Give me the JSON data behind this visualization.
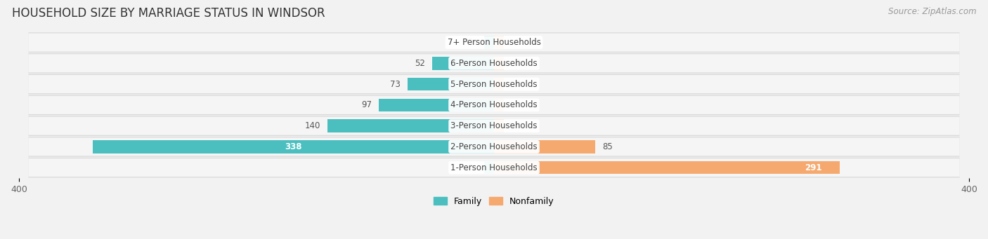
{
  "title": "HOUSEHOLD SIZE BY MARRIAGE STATUS IN WINDSOR",
  "source": "Source: ZipAtlas.com",
  "categories": [
    "7+ Person Households",
    "6-Person Households",
    "5-Person Households",
    "4-Person Households",
    "3-Person Households",
    "2-Person Households",
    "1-Person Households"
  ],
  "family_values": [
    0,
    52,
    73,
    97,
    140,
    338,
    0
  ],
  "nonfamily_values": [
    0,
    0,
    0,
    0,
    0,
    85,
    291
  ],
  "family_color": "#4bbfbf",
  "nonfamily_color": "#f5a96e",
  "xlim": 400,
  "bg_color": "#f2f2f2",
  "row_light": "#f9f9f9",
  "row_dark": "#ebebeb",
  "title_fontsize": 12,
  "source_fontsize": 8.5,
  "bar_label_fontsize": 8.5,
  "axis_label_fontsize": 9,
  "legend_fontsize": 9,
  "category_fontsize": 8.5
}
